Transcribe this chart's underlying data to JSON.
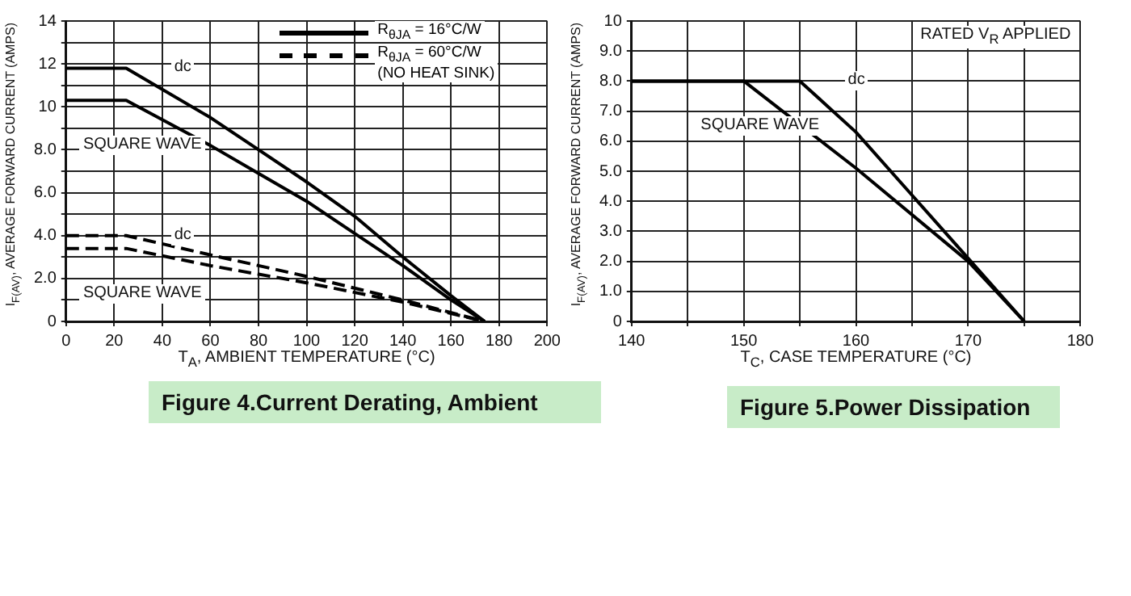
{
  "chart_data": [
    {
      "type": "line",
      "title": "Figure 4.Current  Derating, Ambient",
      "xlabel": "T$_{A}$, AMBIENT TEMPERATURE (°C)",
      "ylabel": "I$_{F(AV)}$, AVERAGE FORWARD CURRENT (AMPS)",
      "series": [
        {
          "name": "R$_{θJA}$ = 16°C/W",
          "color": "#000000",
          "line_style": "solid",
          "x": [
            0,
            25,
            60,
            80,
            100,
            120,
            140,
            160,
            174
          ],
          "values": [
            11.8,
            11.8,
            9.5,
            8.0,
            6.5,
            4.9,
            3.0,
            1.2,
            0
          ]
        },
        {
          "color": "#000000",
          "line_style": "solid",
          "x": [
            0,
            25,
            60,
            80,
            100,
            120,
            140,
            160,
            174
          ],
          "values": [
            10.3,
            10.3,
            8.2,
            6.9,
            5.6,
            4.1,
            2.6,
            1.0,
            0
          ]
        },
        {
          "name": "R$_{θJA}$ = 60°C/W (NO HEAT SINK)",
          "color": "#000000",
          "line_style": "dashed",
          "x": [
            0,
            25,
            60,
            100,
            140,
            174
          ],
          "values": [
            4.0,
            4.0,
            3.1,
            2.1,
            1.0,
            0
          ]
        },
        {
          "color": "#000000",
          "line_style": "dashed",
          "x": [
            0,
            25,
            60,
            100,
            140,
            174
          ],
          "values": [
            3.4,
            3.4,
            2.6,
            1.8,
            0.9,
            0
          ]
        }
      ],
      "annotations": [
        "dc",
        "SQUARE WAVE",
        "dc",
        "SQUARE WAVE"
      ],
      "xlim": [
        0,
        200
      ],
      "xticks": [
        0,
        20,
        40,
        60,
        80,
        100,
        120,
        140,
        160,
        180,
        200
      ],
      "ylim": [
        0,
        14
      ],
      "yticks": [
        0,
        {
          "value": 1,
          "label": null
        },
        {
          "value": 2,
          "label": "2.0"
        },
        {
          "value": 3,
          "label": null
        },
        {
          "value": 4,
          "label": "4.0"
        },
        {
          "value": 5,
          "label": null
        },
        {
          "value": 6,
          "label": "6.0"
        },
        {
          "value": 7,
          "label": null
        },
        {
          "value": 8,
          "label": "8.0"
        },
        {
          "value": 9,
          "label": null
        },
        10,
        {
          "value": 11,
          "label": null
        },
        12,
        {
          "value": 13,
          "label": null
        },
        14
      ],
      "grid": true,
      "legend": "top right",
      "marker": "none"
    },
    {
      "type": "line",
      "title": "Figure 5.Power  Dissipation",
      "xlabel": "T$_{C}$, CASE TEMPERATURE (°C)",
      "ylabel": "I$_{F(AV)}$, AVERAGE FORWARD CURRENT (AMPS)",
      "series": [
        {
          "color": "#000000",
          "line_style": "solid",
          "x": [
            140,
            155,
            160,
            165,
            170,
            175
          ],
          "values": [
            8,
            8,
            6.3,
            4.2,
            2.1,
            0
          ]
        },
        {
          "color": "#000000",
          "line_style": "solid",
          "x": [
            140,
            150,
            160,
            170,
            175
          ],
          "values": [
            8,
            8,
            5.1,
            2.0,
            0
          ]
        }
      ],
      "annotations": [
        "dc",
        "SQUARE WAVE",
        "RATED V$_{R}$ APPLIED"
      ],
      "xlim": [
        140,
        180
      ],
      "xticks": [
        140,
        {
          "value": 145,
          "label": null
        },
        150,
        {
          "value": 155,
          "label": null
        },
        160,
        {
          "value": 165,
          "label": null
        },
        170,
        {
          "value": 175,
          "label": null
        },
        180
      ],
      "ylim": [
        0,
        10
      ],
      "yticks": [
        0,
        {
          "value": 1,
          "label": "1.0"
        },
        {
          "value": 2,
          "label": "2.0"
        },
        {
          "value": 3,
          "label": "3.0"
        },
        {
          "value": 4,
          "label": "4.0"
        },
        {
          "value": 5,
          "label": "5.0"
        },
        {
          "value": 6,
          "label": "6.0"
        },
        {
          "value": 7,
          "label": "7.0"
        },
        {
          "value": 8,
          "label": "8.0"
        },
        {
          "value": 9,
          "label": "9.0"
        },
        10
      ],
      "grid": true,
      "legend": false,
      "marker": "none"
    }
  ]
}
